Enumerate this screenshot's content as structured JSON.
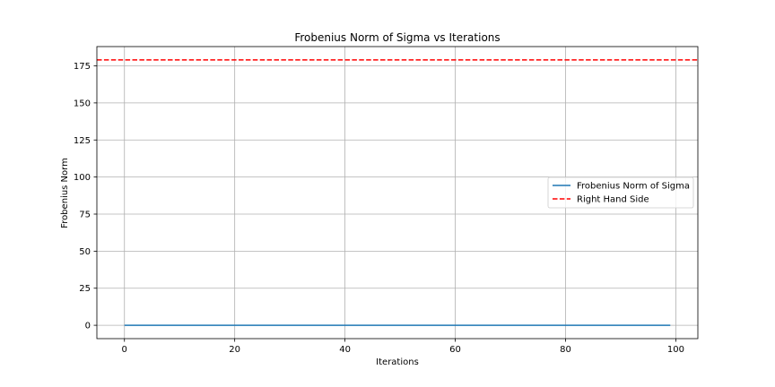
{
  "chart_data": {
    "type": "line",
    "title": "Frobenius Norm of Sigma vs Iterations",
    "xlabel": "Iterations",
    "ylabel": "Frobenius Norm",
    "xlim": [
      -5,
      104
    ],
    "ylim": [
      -9,
      188
    ],
    "xticks": [
      0,
      20,
      40,
      60,
      80,
      100
    ],
    "yticks": [
      0,
      25,
      50,
      75,
      100,
      125,
      150,
      175
    ],
    "grid": true,
    "legend_placement": "center-right",
    "series": [
      {
        "name": "Frobenius Norm of Sigma",
        "style": "solid",
        "color": "#1f77b4",
        "x": [
          0,
          99
        ],
        "y": [
          0,
          0
        ]
      },
      {
        "name": "Right Hand Side",
        "style": "dashed",
        "color": "#ff0000",
        "hline": 179
      }
    ]
  }
}
